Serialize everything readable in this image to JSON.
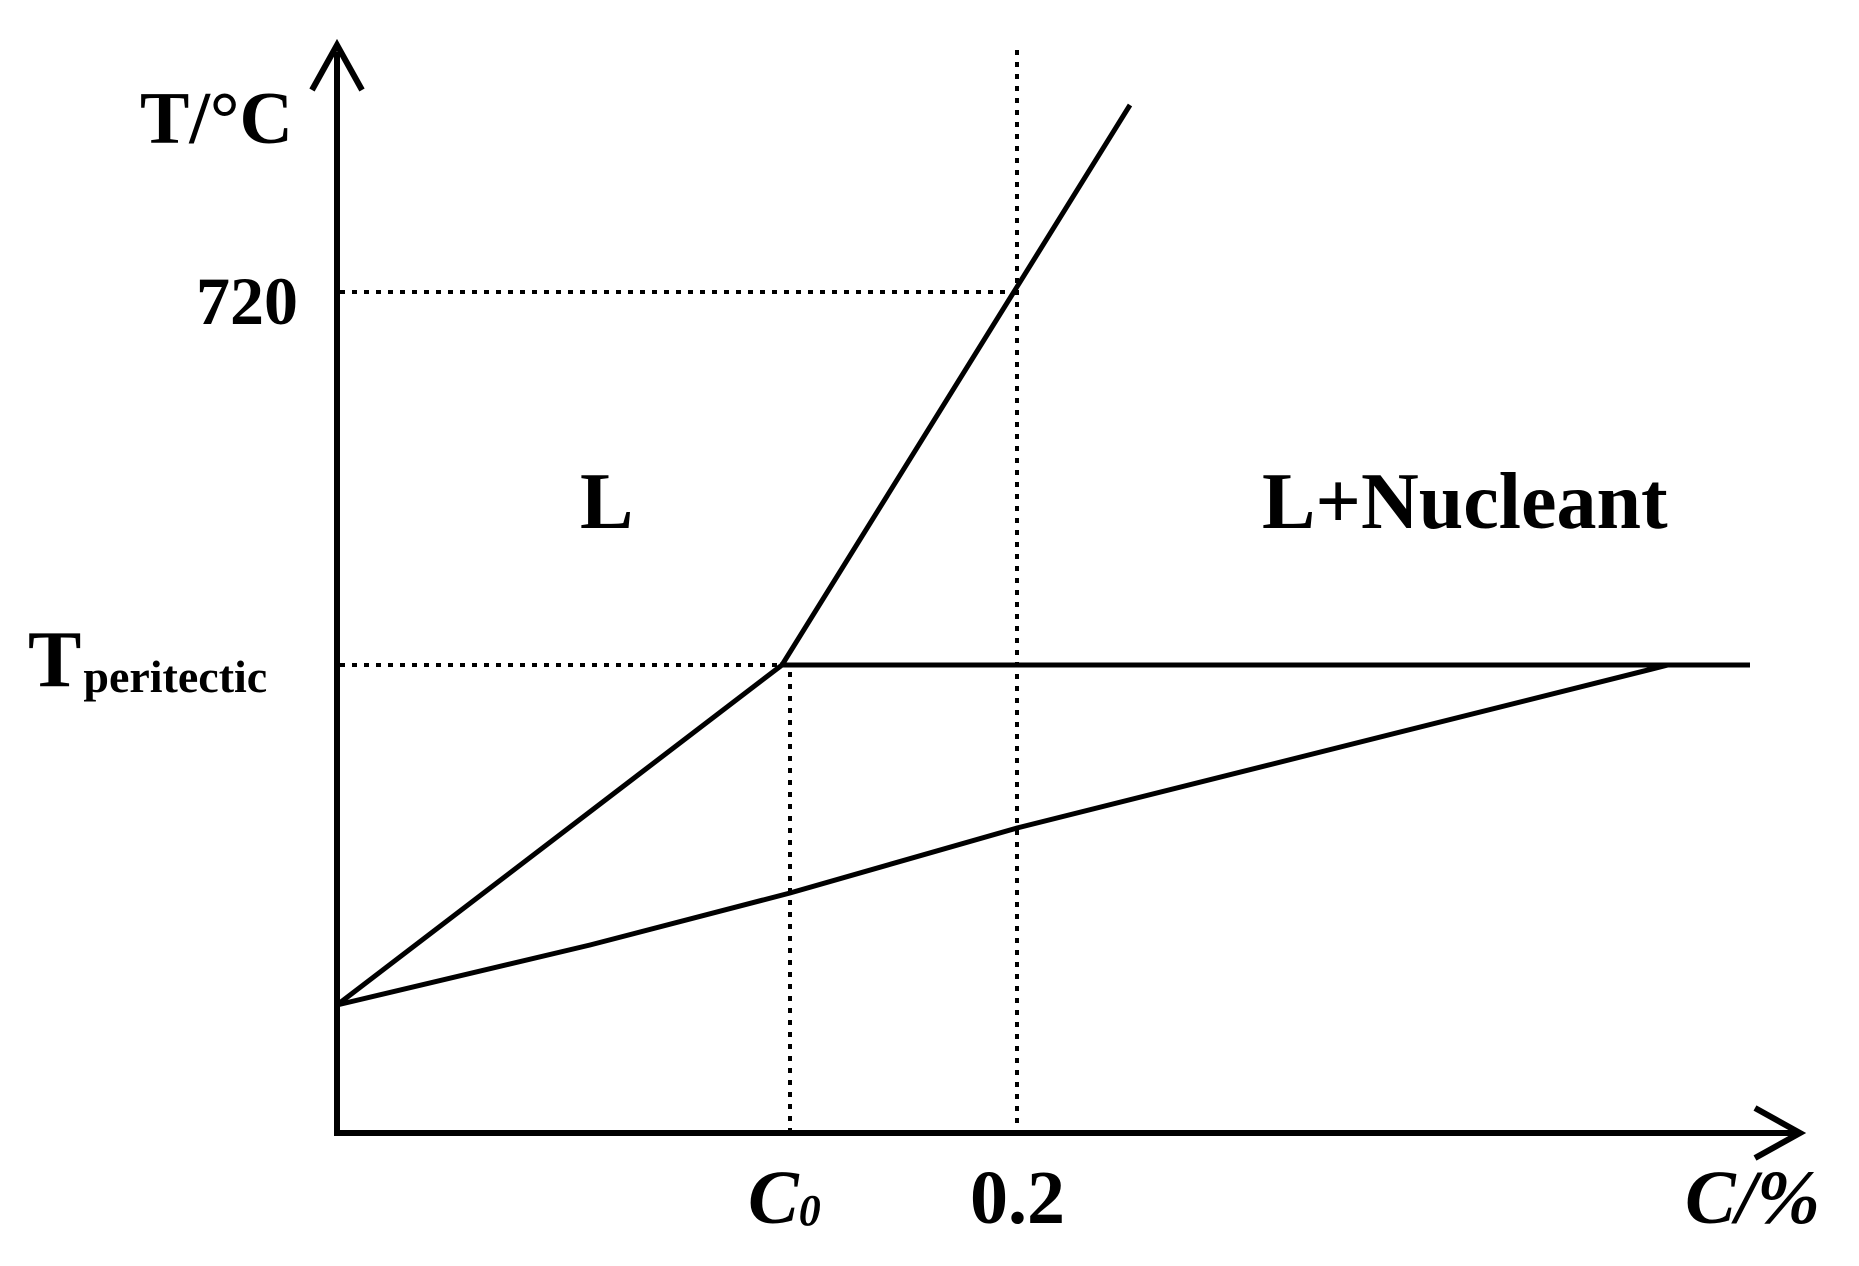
{
  "axes": {
    "y_label": "T/°C",
    "x_label": "C/%"
  },
  "ticks": {
    "y_720": "720",
    "y_peritectic_main": "T",
    "y_peritectic_sub": "peritectic",
    "x_c0_main": "C",
    "x_c0_sub": "0",
    "x_02": "0.2"
  },
  "regions": {
    "liquid": "L",
    "liquid_nucleant": "L+Nucleant"
  },
  "colors": {
    "line": "#000000",
    "background": "#ffffff"
  }
}
